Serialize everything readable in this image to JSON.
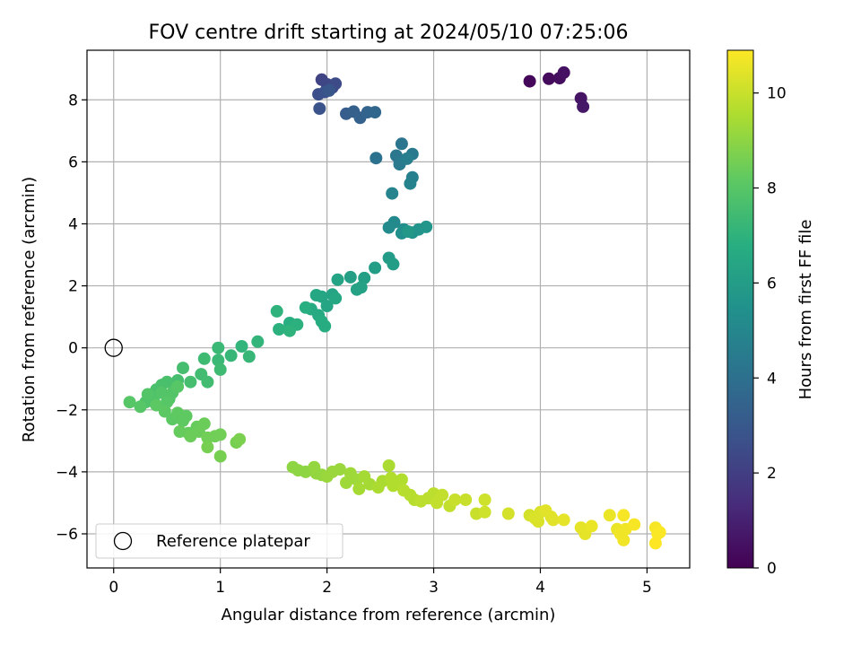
{
  "chart_data": {
    "type": "scatter",
    "title": "FOV centre drift starting at 2024/05/10 07:25:06",
    "xlabel": "Angular distance from reference (arcmin)",
    "ylabel": "Rotation from reference (arcmin)",
    "colorbar_label": "Hours from first FF file",
    "xlim": [
      -0.25,
      5.4
    ],
    "ylim": [
      -7.1,
      9.6
    ],
    "clim": [
      0,
      10.9
    ],
    "colormap": "viridis",
    "x_ticks": [
      0,
      1,
      2,
      3,
      4,
      5
    ],
    "y_ticks": [
      -6,
      -4,
      -2,
      0,
      2,
      4,
      6,
      8
    ],
    "colorbar_ticks": [
      0,
      2,
      4,
      6,
      8,
      10
    ],
    "grid": true,
    "legend": {
      "placement": "lower-left",
      "entries": [
        "Reference platepar"
      ]
    },
    "reference_point": {
      "x": 0,
      "y": 0,
      "label": "Reference platepar"
    },
    "points": [
      [
        3.9,
        8.6,
        0.2
      ],
      [
        4.08,
        8.68,
        0.3
      ],
      [
        4.18,
        8.7,
        0.4
      ],
      [
        4.22,
        8.88,
        0.5
      ],
      [
        4.38,
        8.05,
        0.6
      ],
      [
        4.4,
        7.78,
        0.7
      ],
      [
        1.95,
        8.65,
        2.2
      ],
      [
        2.0,
        8.5,
        2.3
      ],
      [
        2.05,
        8.4,
        2.4
      ],
      [
        2.08,
        8.52,
        2.5
      ],
      [
        1.92,
        8.18,
        2.6
      ],
      [
        1.98,
        8.25,
        2.7
      ],
      [
        1.93,
        7.72,
        2.8
      ],
      [
        2.02,
        8.3,
        2.9
      ],
      [
        2.18,
        7.55,
        3.2
      ],
      [
        2.25,
        7.62,
        3.3
      ],
      [
        2.31,
        7.42,
        3.4
      ],
      [
        2.38,
        7.6,
        3.5
      ],
      [
        2.45,
        7.6,
        3.6
      ],
      [
        2.46,
        6.12,
        4.1
      ],
      [
        2.7,
        6.58,
        4.2
      ],
      [
        2.65,
        6.2,
        4.3
      ],
      [
        2.8,
        6.25,
        4.4
      ],
      [
        2.68,
        5.92,
        4.5
      ],
      [
        2.75,
        6.1,
        4.6
      ],
      [
        2.8,
        5.5,
        4.7
      ],
      [
        2.78,
        5.3,
        4.8
      ],
      [
        2.61,
        4.98,
        4.9
      ],
      [
        2.63,
        4.05,
        5.1
      ],
      [
        2.58,
        3.88,
        5.2
      ],
      [
        2.72,
        3.82,
        5.3
      ],
      [
        2.7,
        3.7,
        5.4
      ],
      [
        2.8,
        3.72,
        5.5
      ],
      [
        2.86,
        3.82,
        5.6
      ],
      [
        2.93,
        3.9,
        5.7
      ],
      [
        2.76,
        3.75,
        5.8
      ],
      [
        2.58,
        2.9,
        5.9
      ],
      [
        2.62,
        2.7,
        6.0
      ],
      [
        2.45,
        2.58,
        6.0
      ],
      [
        2.35,
        2.25,
        6.1
      ],
      [
        2.22,
        2.28,
        6.1
      ],
      [
        2.28,
        1.88,
        6.2
      ],
      [
        2.32,
        1.95,
        6.2
      ],
      [
        2.1,
        2.2,
        6.3
      ],
      [
        2.05,
        1.72,
        6.3
      ],
      [
        2.0,
        1.35,
        6.4
      ],
      [
        1.95,
        1.65,
        6.4
      ],
      [
        1.9,
        1.7,
        6.5
      ],
      [
        2.08,
        1.6,
        6.5
      ],
      [
        1.85,
        1.25,
        6.6
      ],
      [
        1.92,
        1.05,
        6.6
      ],
      [
        1.95,
        0.85,
        6.7
      ],
      [
        1.98,
        0.7,
        6.7
      ],
      [
        1.8,
        1.3,
        6.8
      ],
      [
        1.65,
        0.8,
        6.8
      ],
      [
        1.72,
        0.75,
        6.9
      ],
      [
        1.55,
        0.6,
        6.9
      ],
      [
        1.65,
        0.55,
        7.0
      ],
      [
        1.53,
        1.18,
        7.0
      ],
      [
        1.35,
        0.2,
        7.1
      ],
      [
        1.2,
        0.05,
        7.1
      ],
      [
        1.1,
        -0.25,
        7.2
      ],
      [
        1.27,
        -0.28,
        7.2
      ],
      [
        0.98,
        0.0,
        7.3
      ],
      [
        0.98,
        -0.4,
        7.3
      ],
      [
        1.0,
        -0.7,
        7.4
      ],
      [
        0.85,
        -0.35,
        7.4
      ],
      [
        0.82,
        -0.85,
        7.5
      ],
      [
        0.88,
        -1.1,
        7.5
      ],
      [
        0.65,
        -0.65,
        7.6
      ],
      [
        0.72,
        -1.1,
        7.6
      ],
      [
        0.6,
        -1.05,
        7.6
      ],
      [
        0.5,
        -1.1,
        7.7
      ],
      [
        0.45,
        -1.2,
        7.7
      ],
      [
        0.4,
        -1.35,
        7.7
      ],
      [
        0.35,
        -1.55,
        7.8
      ],
      [
        0.38,
        -1.75,
        7.8
      ],
      [
        0.3,
        -1.75,
        7.8
      ],
      [
        0.32,
        -1.5,
        7.9
      ],
      [
        0.45,
        -1.45,
        7.9
      ],
      [
        0.52,
        -1.65,
        7.9
      ],
      [
        0.55,
        -1.45,
        7.9
      ],
      [
        0.5,
        -1.75,
        8.0
      ],
      [
        0.6,
        -1.25,
        8.0
      ],
      [
        0.25,
        -1.9,
        8.0
      ],
      [
        0.15,
        -1.75,
        8.0
      ],
      [
        0.4,
        -1.85,
        8.1
      ],
      [
        0.48,
        -2.05,
        8.1
      ],
      [
        0.55,
        -2.3,
        8.1
      ],
      [
        0.6,
        -2.1,
        8.2
      ],
      [
        0.65,
        -2.35,
        8.2
      ],
      [
        0.68,
        -2.2,
        8.2
      ],
      [
        0.62,
        -2.7,
        8.3
      ],
      [
        0.7,
        -2.75,
        8.3
      ],
      [
        0.78,
        -2.55,
        8.3
      ],
      [
        0.8,
        -2.7,
        8.4
      ],
      [
        0.72,
        -2.85,
        8.4
      ],
      [
        0.85,
        -2.45,
        8.4
      ],
      [
        0.88,
        -2.9,
        8.5
      ],
      [
        0.95,
        -2.85,
        8.5
      ],
      [
        1.0,
        -2.8,
        8.5
      ],
      [
        0.88,
        -3.2,
        8.6
      ],
      [
        1.0,
        -3.5,
        8.6
      ],
      [
        1.15,
        -3.05,
        8.6
      ],
      [
        1.18,
        -2.95,
        8.7
      ],
      [
        1.68,
        -3.85,
        9.0
      ],
      [
        1.73,
        -3.95,
        9.0
      ],
      [
        1.8,
        -4.0,
        9.0
      ],
      [
        1.88,
        -3.85,
        9.1
      ],
      [
        1.9,
        -4.05,
        9.1
      ],
      [
        1.95,
        -4.1,
        9.1
      ],
      [
        2.0,
        -4.15,
        9.2
      ],
      [
        2.05,
        -4.0,
        9.2
      ],
      [
        2.12,
        -3.92,
        9.2
      ],
      [
        2.18,
        -4.35,
        9.3
      ],
      [
        2.22,
        -4.05,
        9.3
      ],
      [
        2.28,
        -4.25,
        9.3
      ],
      [
        2.3,
        -4.55,
        9.4
      ],
      [
        2.35,
        -4.15,
        9.4
      ],
      [
        2.4,
        -4.4,
        9.4
      ],
      [
        2.48,
        -4.5,
        9.5
      ],
      [
        2.52,
        -4.3,
        9.5
      ],
      [
        2.58,
        -3.8,
        9.5
      ],
      [
        2.6,
        -4.2,
        9.6
      ],
      [
        2.62,
        -4.45,
        9.6
      ],
      [
        2.7,
        -4.25,
        9.6
      ],
      [
        2.72,
        -4.6,
        9.7
      ],
      [
        2.78,
        -4.75,
        9.7
      ],
      [
        2.82,
        -4.9,
        9.7
      ],
      [
        2.88,
        -4.95,
        9.8
      ],
      [
        2.95,
        -4.85,
        9.8
      ],
      [
        3.0,
        -4.7,
        9.8
      ],
      [
        3.03,
        -5.0,
        9.9
      ],
      [
        3.08,
        -4.75,
        9.9
      ],
      [
        3.15,
        -5.1,
        9.9
      ],
      [
        3.2,
        -4.9,
        10.0
      ],
      [
        3.3,
        -4.9,
        10.0
      ],
      [
        3.4,
        -5.35,
        10.0
      ],
      [
        3.48,
        -5.3,
        10.1
      ],
      [
        3.48,
        -4.9,
        10.1
      ],
      [
        3.7,
        -5.35,
        10.2
      ],
      [
        3.9,
        -5.4,
        10.2
      ],
      [
        3.95,
        -5.5,
        10.3
      ],
      [
        3.98,
        -5.6,
        10.3
      ],
      [
        4.0,
        -5.3,
        10.3
      ],
      [
        4.05,
        -5.25,
        10.4
      ],
      [
        4.1,
        -5.45,
        10.4
      ],
      [
        4.12,
        -5.55,
        10.4
      ],
      [
        4.22,
        -5.55,
        10.5
      ],
      [
        4.38,
        -5.8,
        10.5
      ],
      [
        4.42,
        -6.0,
        10.5
      ],
      [
        4.48,
        -5.75,
        10.6
      ],
      [
        4.65,
        -5.4,
        10.6
      ],
      [
        4.72,
        -5.85,
        10.6
      ],
      [
        4.75,
        -6.0,
        10.7
      ],
      [
        4.78,
        -6.2,
        10.7
      ],
      [
        4.8,
        -5.85,
        10.7
      ],
      [
        4.88,
        -5.7,
        10.8
      ],
      [
        4.78,
        -5.4,
        10.8
      ],
      [
        5.08,
        -5.8,
        10.8
      ],
      [
        5.1,
        -6.0,
        10.85
      ],
      [
        5.12,
        -5.95,
        10.85
      ],
      [
        5.08,
        -6.3,
        10.9
      ]
    ]
  }
}
